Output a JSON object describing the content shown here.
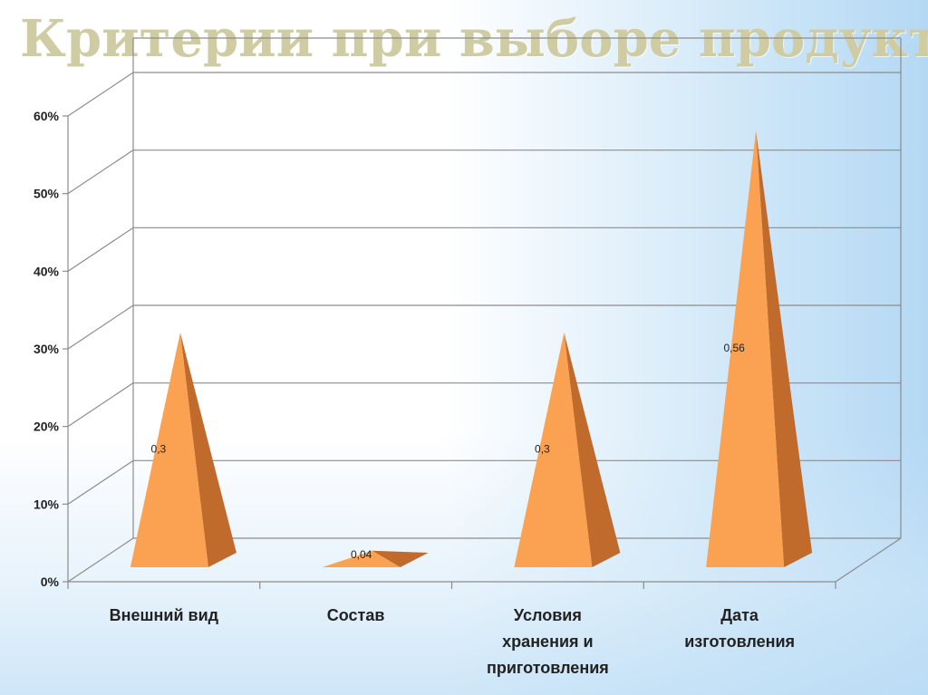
{
  "slide": {
    "title": "Критерии при выборе продукта"
  },
  "chart_data": {
    "type": "bar",
    "bar_shape": "pyramid",
    "three_d": true,
    "categories": [
      [
        "Внешний вид"
      ],
      [
        "Состав"
      ],
      [
        "Условия",
        "хранения и",
        "приготовления"
      ],
      [
        "Дата",
        "изготовления"
      ]
    ],
    "values": [
      0.3,
      0.04,
      0.3,
      0.56
    ],
    "data_labels": [
      "0,3",
      "0,04",
      "0,3",
      "0,56"
    ],
    "y_ticks": [
      0,
      0.1,
      0.2,
      0.3,
      0.4,
      0.5,
      0.6
    ],
    "y_tick_labels": [
      "0%",
      "10%",
      "20%",
      "30%",
      "40%",
      "50%",
      "60%"
    ],
    "ylim": [
      0,
      0.6
    ],
    "grid": true,
    "legend": "none",
    "colors": {
      "bar_front": "#fba152",
      "bar_side": "#c06a2c",
      "grid": "#8c8c8c",
      "title": "#cfcca3"
    }
  }
}
